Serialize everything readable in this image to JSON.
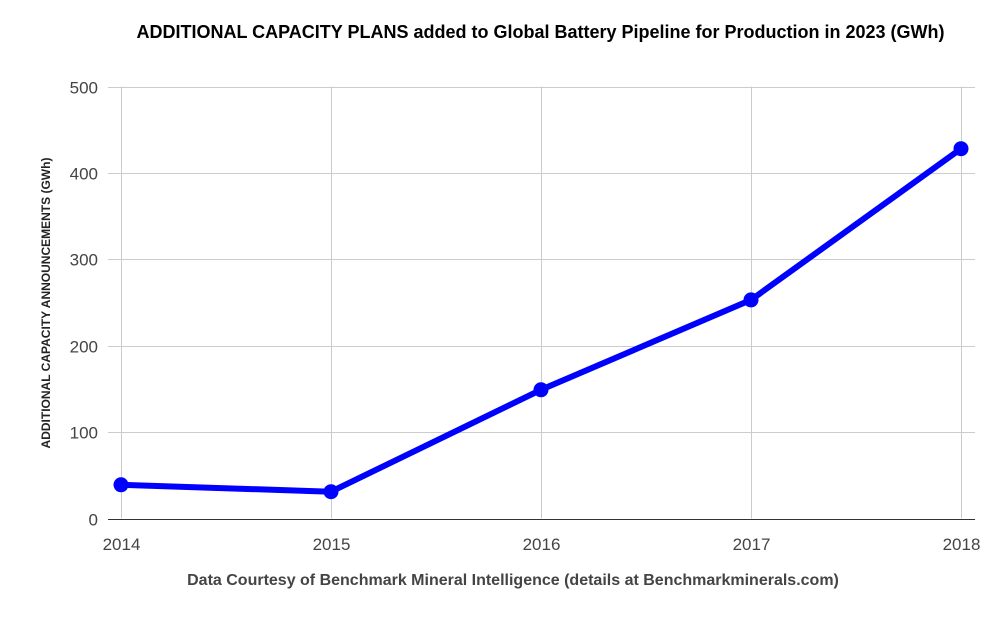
{
  "chart_data": {
    "type": "line",
    "title": "ADDITIONAL CAPACITY PLANS added to Global Battery Pipeline for Production in 2023 (GWh)",
    "xlabel": "Data Courtesy of Benchmark Mineral Intelligence (details at Benchmarkminerals.com)",
    "ylabel": "ADDITIONAL CAPACITY ANNOUNCEMENTS (GWh)",
    "categories": [
      "2014",
      "2015",
      "2016",
      "2017",
      "2018"
    ],
    "series": [
      {
        "values": [
          39,
          31,
          149,
          253,
          428
        ],
        "color": "#0000ff"
      }
    ],
    "ylim": [
      0,
      500
    ],
    "yticks": [
      "0",
      "100",
      "200",
      "300",
      "400",
      "500"
    ],
    "grid": true,
    "legend": "none"
  }
}
